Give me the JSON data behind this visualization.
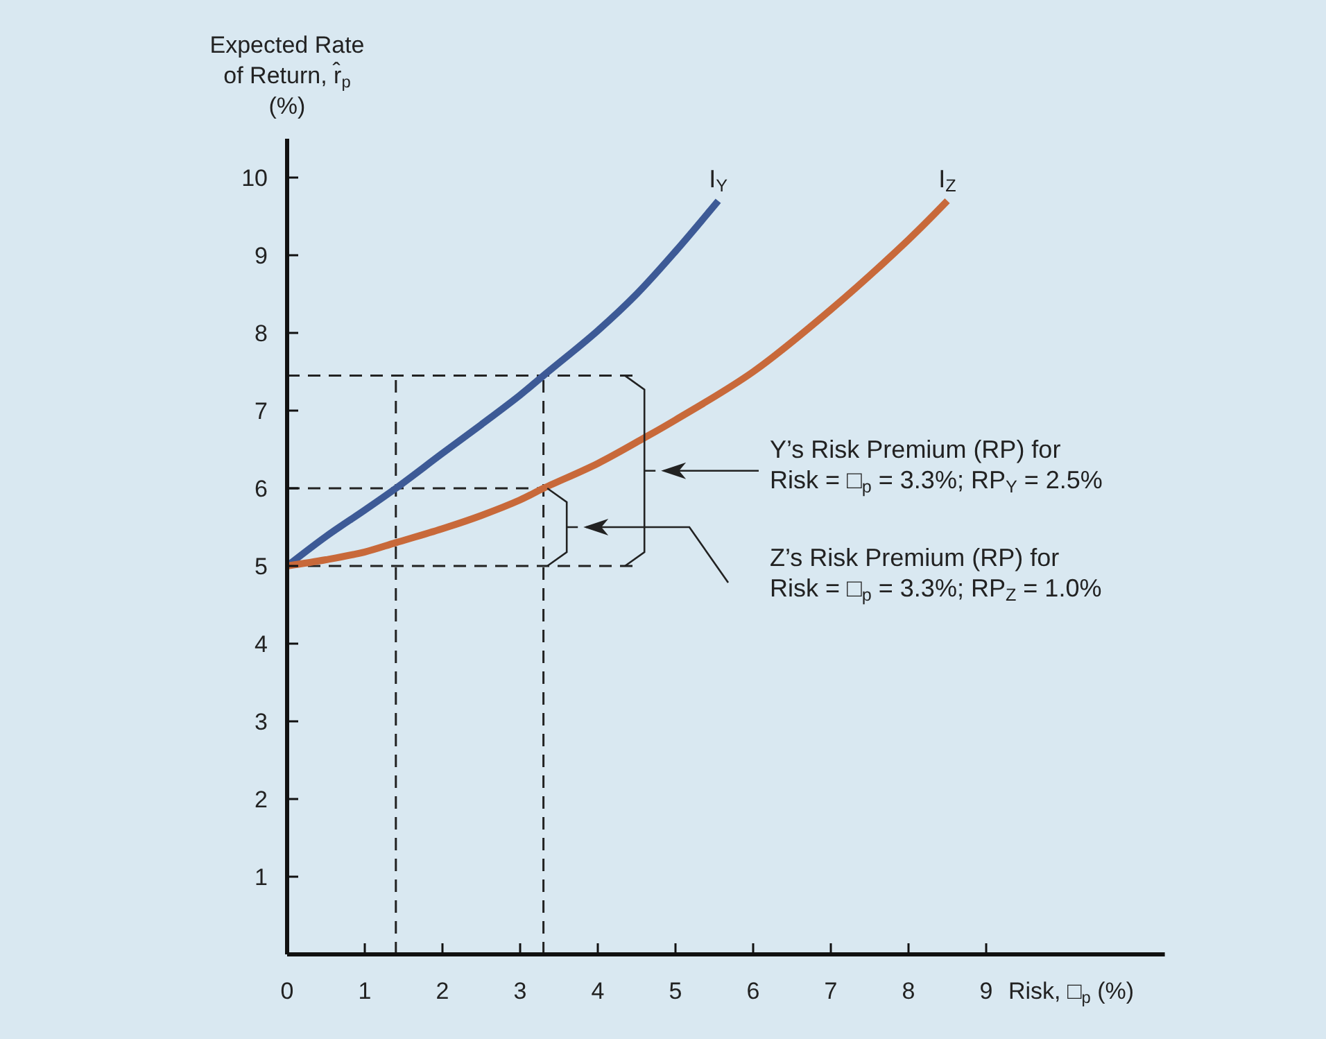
{
  "chart_data": {
    "type": "line",
    "xlabel": "Risk, □$_{p}$ (%)",
    "ylabel": "Expected Rate\nof Return, r̂$_{p}$\n(%)",
    "xlim": [
      0,
      11.3
    ],
    "ylim": [
      0,
      10.5
    ],
    "xticks": [
      0,
      1,
      2,
      3,
      4,
      5,
      6,
      7,
      8,
      9
    ],
    "yticks": [
      1,
      2,
      3,
      4,
      5,
      6,
      7,
      8,
      9,
      10
    ],
    "grid": false,
    "marker": "none",
    "line_style": "solid",
    "series": [
      {
        "name": "I$_{Y}$",
        "color": "#3d5a96",
        "x": [
          0,
          0.5,
          1,
          1.4,
          2,
          2.5,
          3,
          3.3,
          4,
          4.5,
          5,
          5.55
        ],
        "values": [
          5,
          5.38,
          5.72,
          6.0,
          6.45,
          6.82,
          7.2,
          7.45,
          8.03,
          8.5,
          9.05,
          9.7
        ]
      },
      {
        "name": "I$_{Z}$",
        "color": "#c8693a",
        "x": [
          0,
          0.5,
          1,
          1.4,
          2,
          2.5,
          3,
          3.3,
          4,
          4.6,
          5,
          6,
          7,
          8,
          8.5
        ],
        "values": [
          5,
          5.08,
          5.18,
          5.3,
          5.48,
          5.65,
          5.85,
          6.0,
          6.32,
          6.65,
          6.88,
          7.5,
          8.3,
          9.2,
          9.7
        ]
      }
    ],
    "ref_lines": [
      {
        "axis": "x",
        "value": 1.4,
        "line_style": "dashed",
        "color": "#222222"
      },
      {
        "axis": "x",
        "value": 3.3,
        "line_style": "dashed",
        "color": "#222222"
      },
      {
        "axis": "y",
        "value": 7.45,
        "line_style": "dashed",
        "color": "#222222"
      },
      {
        "axis": "y",
        "value": 6,
        "line_style": "dashed",
        "color": "#222222"
      },
      {
        "axis": "y",
        "value": 5,
        "line_style": "dashed",
        "color": "#222222"
      }
    ],
    "annotations": [
      "Y’s Risk Premium (RP) for\nRisk = □$_{p}$ = 3.3%; RP$_{Y}$ = 2.5%",
      "Z’s Risk Premium (RP) for\nRisk = □$_{p}$ = 3.3%; RP$_{Z}$ = 1.0%"
    ]
  }
}
